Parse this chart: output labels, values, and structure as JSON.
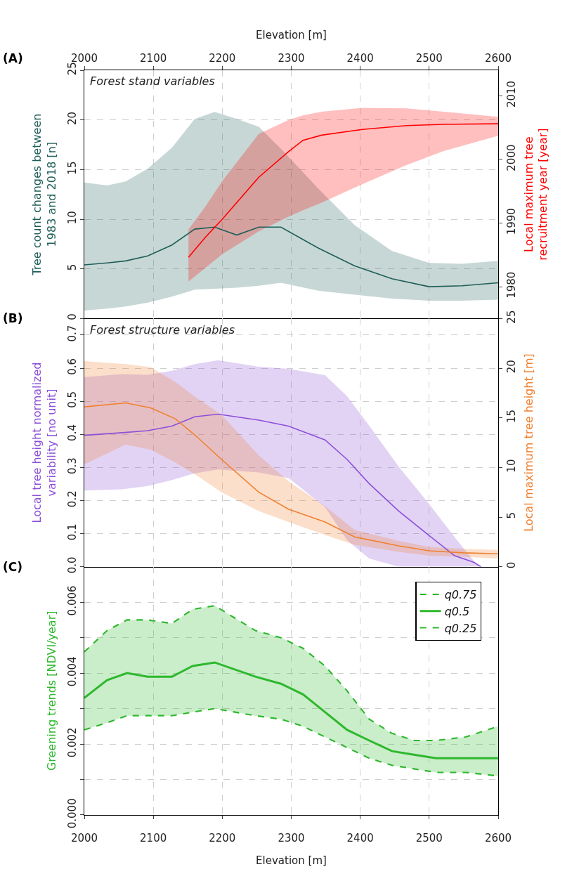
{
  "chart_data": [
    {
      "type": "line",
      "annotations": [
        "(A)",
        "Forest stand variables"
      ],
      "x2label": "Elevation [m]",
      "ylabel": "Tree count changes between\n1983 and 2018 [n]",
      "y2label": "Local maximum tree\nrecruitment year [year]",
      "xlim": [
        2000,
        2600
      ],
      "xticks": [
        2000,
        2100,
        2200,
        2300,
        2400,
        2500,
        2600
      ],
      "x2lim": [
        2000,
        2600
      ],
      "x2ticks": [
        2000,
        2100,
        2200,
        2300,
        2400,
        2500,
        2600
      ],
      "ylim": [
        0,
        25
      ],
      "yticks": [
        0,
        5,
        10,
        15,
        20,
        25
      ],
      "y2lim": [
        1975,
        2014
      ],
      "y2ticks": [
        1980,
        1990,
        2000,
        2010
      ],
      "tick_labels": "y",
      "grid": true,
      "legend": false,
      "series": [
        {
          "color": "#1e5e58",
          "x": [
            2000,
            2033,
            2060,
            2092,
            2127,
            2160,
            2189,
            2221,
            2253,
            2285,
            2339,
            2392,
            2446,
            2500,
            2548,
            2600
          ],
          "values": [
            5.4,
            5.6,
            5.8,
            6.3,
            7.4,
            9.0,
            9.2,
            8.4,
            9.2,
            9.2,
            7.1,
            5.3,
            4.0,
            3.2,
            3.3,
            3.6
          ],
          "upper": [
            13.7,
            13.4,
            13.8,
            15.1,
            17.2,
            20.1,
            20.8,
            20.1,
            19.3,
            17.1,
            13.1,
            9.4,
            6.8,
            5.6,
            5.5,
            5.8
          ],
          "lower": [
            0.8,
            1.0,
            1.2,
            1.6,
            2.2,
            2.9,
            3.0,
            3.1,
            3.3,
            3.6,
            2.8,
            2.4,
            2.0,
            1.8,
            1.8,
            1.9
          ]
        },
        {
          "color": "#ff0000",
          "axis": "y2",
          "x": [
            2151,
            2175,
            2200,
            2253,
            2296,
            2317,
            2344,
            2403,
            2467,
            2521,
            2600
          ],
          "values": [
            1984.6,
            1987.7,
            1990.6,
            1997.2,
            2001.2,
            2003.0,
            2003.8,
            2004.7,
            2005.3,
            2005.5,
            2005.6
          ],
          "upper": [
            1989.0,
            1992.5,
            1996.6,
            2004.0,
            2006.2,
            2006.9,
            2007.5,
            2008.1,
            2008.0,
            2007.5,
            2006.7
          ],
          "lower": [
            1980.8,
            1982.9,
            1985.1,
            1988.7,
            1991.0,
            1992.0,
            1993.2,
            1996.1,
            1999.1,
            2001.3,
            2003.7
          ]
        }
      ]
    },
    {
      "type": "line",
      "annotations": [
        "(B)",
        "Forest structure variables"
      ],
      "ylabel": "Local tree height normalized\nvariability [no unit]",
      "y2label": "Local maximum tree height [m]",
      "xlim": [
        2000,
        2600
      ],
      "xticks": [
        2000,
        2100,
        2200,
        2300,
        2400,
        2500,
        2600
      ],
      "ylim": [
        0,
        0.75
      ],
      "yticks": [
        {
          "value": 0,
          "label": "0.0"
        },
        0.1,
        0.2,
        0.3,
        0.4,
        0.5,
        0.6,
        0.7
      ],
      "y2lim": [
        0,
        25
      ],
      "y2ticks": [
        0,
        5,
        10,
        15,
        20,
        25
      ],
      "tick_labels": "y",
      "grid": true,
      "legend": false,
      "series": [
        {
          "color": "#8c4fd8",
          "x": [
            2000,
            2055,
            2092,
            2127,
            2160,
            2194,
            2253,
            2296,
            2349,
            2381,
            2413,
            2456,
            2500,
            2537,
            2565,
            2575
          ],
          "values": [
            0.397,
            0.405,
            0.411,
            0.425,
            0.453,
            0.461,
            0.443,
            0.425,
            0.383,
            0.324,
            0.251,
            0.168,
            0.094,
            0.033,
            0.013,
            0.0
          ],
          "upper": [
            0.573,
            0.582,
            0.58,
            0.592,
            0.612,
            0.624,
            0.604,
            0.598,
            0.579,
            0.515,
            0.426,
            0.302,
            0.189,
            0.089,
            0.017,
            0.0
          ],
          "lower": [
            0.23,
            0.234,
            0.244,
            0.262,
            0.282,
            0.294,
            0.285,
            0.268,
            0.18,
            0.08,
            0.025,
            0.0,
            0.0,
            0.0,
            0.0,
            0.0
          ]
        },
        {
          "color": "#f08030",
          "axis": "y2",
          "x": [
            2000,
            2060,
            2096,
            2132,
            2163,
            2199,
            2253,
            2296,
            2349,
            2392,
            2456,
            2500,
            2550,
            2600
          ],
          "values": [
            16.1,
            16.5,
            16.0,
            14.9,
            13.1,
            10.8,
            7.5,
            5.8,
            4.5,
            3.0,
            2.1,
            1.6,
            1.4,
            1.3
          ],
          "upper": [
            20.7,
            20.4,
            20.1,
            18.6,
            17.0,
            15.3,
            11.2,
            8.6,
            6.1,
            3.7,
            2.6,
            2.0,
            1.8,
            1.7
          ],
          "lower": [
            10.3,
            12.3,
            11.8,
            10.5,
            9.2,
            7.5,
            5.6,
            4.5,
            3.2,
            2.2,
            1.5,
            1.1,
            1.0,
            0.8
          ]
        }
      ]
    },
    {
      "type": "line",
      "annotations": [
        "(C)"
      ],
      "xlabel": "Elevation [m]",
      "ylabel": "Greening trends [NDVI/year]",
      "xlim": [
        2000,
        2600
      ],
      "xticks": [
        2000,
        2100,
        2200,
        2300,
        2400,
        2500,
        2600
      ],
      "ylim": [
        0,
        0.007
      ],
      "yticks": [
        {
          "value": 0,
          "label": "0.000"
        },
        {
          "value": 0.001,
          "label": null
        },
        {
          "value": 0.002,
          "label": "0.002"
        },
        {
          "value": 0.003,
          "label": null
        },
        {
          "value": 0.004,
          "label": "0.004"
        },
        {
          "value": 0.005,
          "label": null
        },
        {
          "value": 0.006,
          "label": "0.006"
        }
      ],
      "grid": true,
      "legend": "top right",
      "series": [
        {
          "name": "q0.75",
          "color": "#2db82d",
          "line_style": "dashed",
          "x": [
            2000,
            2033,
            2062,
            2092,
            2127,
            2157,
            2189,
            2248,
            2285,
            2317,
            2349,
            2381,
            2413,
            2446,
            2478,
            2510,
            2553,
            2600
          ],
          "values": [
            0.0046,
            0.0052,
            0.0055,
            0.0055,
            0.0054,
            0.0058,
            0.0059,
            0.0052,
            0.005,
            0.0047,
            0.0042,
            0.0035,
            0.0027,
            0.0023,
            0.0021,
            0.0021,
            0.0022,
            0.0025
          ]
        },
        {
          "name": "q0.5",
          "color": "#2db82d",
          "x": [
            2000,
            2033,
            2062,
            2092,
            2127,
            2157,
            2189,
            2248,
            2285,
            2317,
            2349,
            2381,
            2413,
            2446,
            2478,
            2510,
            2553,
            2600
          ],
          "values": [
            0.0033,
            0.0038,
            0.004,
            0.0039,
            0.0039,
            0.0042,
            0.0043,
            0.0039,
            0.0037,
            0.0034,
            0.0029,
            0.0024,
            0.0021,
            0.0018,
            0.0017,
            0.0016,
            0.0016,
            0.0016
          ],
          "upper": [
            0.0046,
            0.0052,
            0.0055,
            0.0055,
            0.0054,
            0.0058,
            0.0059,
            0.0052,
            0.005,
            0.0047,
            0.0042,
            0.0035,
            0.0027,
            0.0023,
            0.0021,
            0.0021,
            0.0022,
            0.0025
          ],
          "lower": [
            0.0024,
            0.0026,
            0.0028,
            0.0028,
            0.0028,
            0.0029,
            0.003,
            0.0028,
            0.0027,
            0.0025,
            0.0022,
            0.0019,
            0.0016,
            0.0014,
            0.0013,
            0.0012,
            0.0012,
            0.0011
          ]
        },
        {
          "name": "q0.25",
          "color": "#2db82d",
          "line_style": "dashed",
          "x": [
            2000,
            2033,
            2062,
            2092,
            2127,
            2157,
            2189,
            2248,
            2285,
            2317,
            2349,
            2381,
            2413,
            2446,
            2478,
            2510,
            2553,
            2600
          ],
          "values": [
            0.0024,
            0.0026,
            0.0028,
            0.0028,
            0.0028,
            0.0029,
            0.003,
            0.0028,
            0.0027,
            0.0025,
            0.0022,
            0.0019,
            0.0016,
            0.0014,
            0.0013,
            0.0012,
            0.0012,
            0.0011
          ]
        }
      ]
    }
  ]
}
